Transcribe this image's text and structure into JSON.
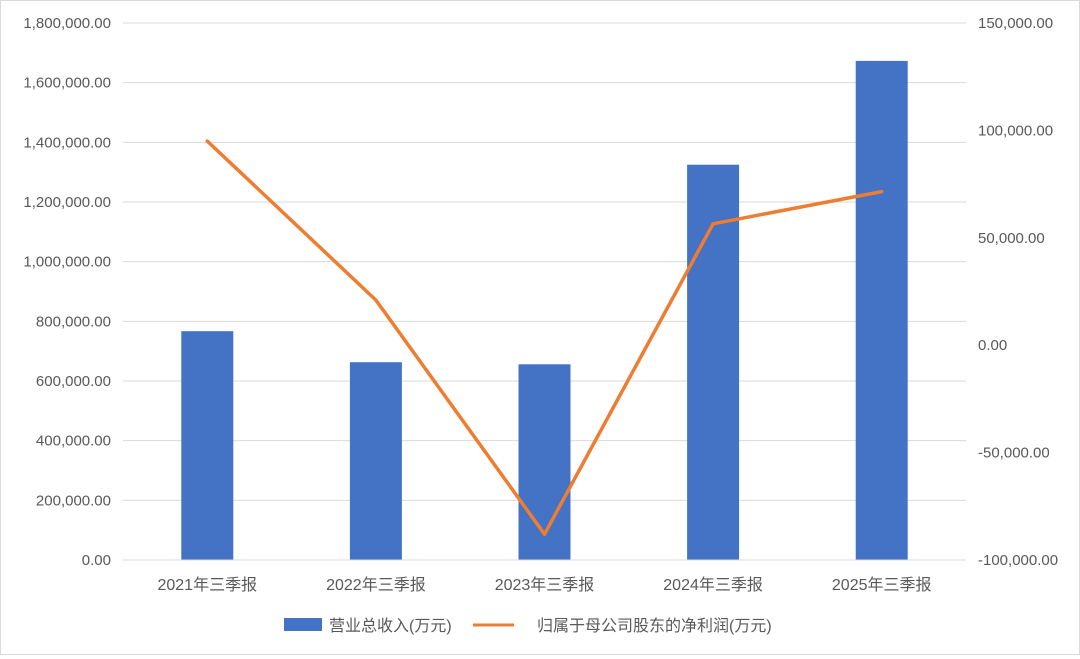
{
  "chart_data": {
    "type": "bar+line",
    "title": "",
    "categories": [
      "2021年三季报",
      "2022年三季报",
      "2023年三季报",
      "2024年三季报",
      "2025年三季报"
    ],
    "series": [
      {
        "name": "营业总收入(万元)",
        "type": "bar",
        "axis": "left",
        "color": "#4472C4",
        "values": [
          767000,
          663000,
          656000,
          1325000,
          1673000
        ]
      },
      {
        "name": "归属于母公司股东的净利润(万元)",
        "type": "line",
        "axis": "right",
        "color": "#ED7D31",
        "values": [
          95000,
          21000,
          -88000,
          56500,
          71500
        ]
      }
    ],
    "y_left": {
      "ylim": [
        0,
        1800000
      ],
      "ticks": [
        "0.00",
        "200,000.00",
        "400,000.00",
        "600,000.00",
        "800,000.00",
        "1,000,000.00",
        "1,200,000.00",
        "1,400,000.00",
        "1,600,000.00",
        "1,800,000.00"
      ]
    },
    "y_right": {
      "ylim": [
        -100000,
        150000
      ],
      "ticks": [
        "-100,000.00",
        "-50,000.00",
        "0.00",
        "50,000.00",
        "100,000.00",
        "150,000.00"
      ]
    },
    "grid": true,
    "legend_position": "bottom"
  }
}
